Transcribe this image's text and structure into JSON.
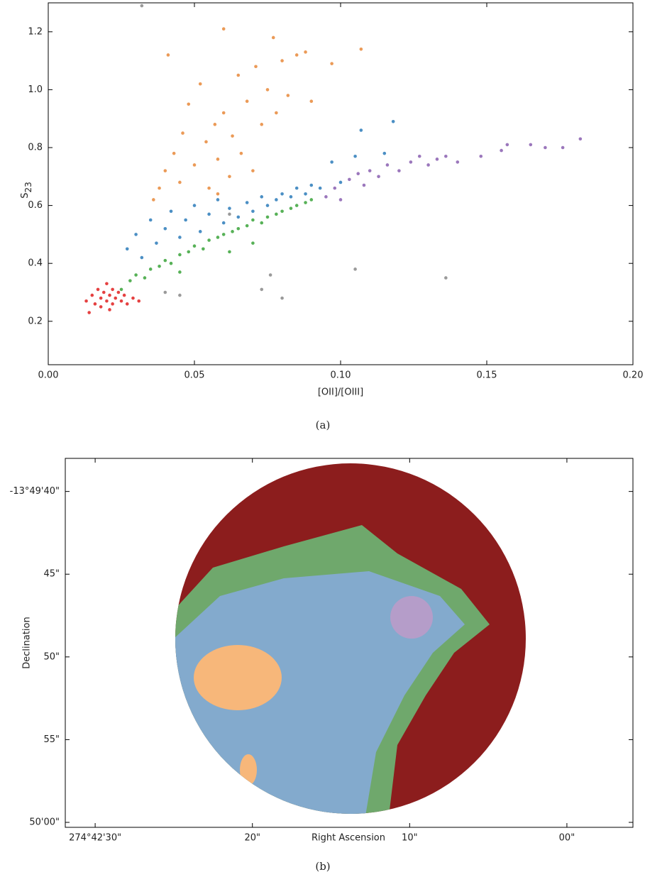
{
  "chart_data": [
    {
      "type": "scatter",
      "xlabel": "[OII]/[OIII]",
      "ylabel": [
        "S",
        "23"
      ],
      "caption": "(a)",
      "xlim": [
        0,
        0.2
      ],
      "ylim": [
        0.05,
        1.3
      ],
      "xticks": [
        {
          "value": 0,
          "label": "0.00"
        },
        0.05,
        {
          "value": 0.1,
          "label": "0.10"
        },
        0.15,
        {
          "value": 0.2,
          "label": "0.20"
        }
      ],
      "yticks": [
        0.2,
        0.4,
        0.6,
        0.8,
        {
          "value": 1,
          "label": "1.0"
        },
        1.2
      ],
      "series": [
        {
          "color": "#2b7bba",
          "x": [
            0.027,
            0.03,
            0.032,
            0.035,
            0.037,
            0.04,
            0.042,
            0.045,
            0.047,
            0.05,
            0.052,
            0.055,
            0.058,
            0.06,
            0.062,
            0.065,
            0.068,
            0.07,
            0.073,
            0.075,
            0.078,
            0.08,
            0.083,
            0.085,
            0.088,
            0.09,
            0.093,
            0.097,
            0.105,
            0.107,
            0.118,
            0.115,
            0.1
          ],
          "values": [
            0.45,
            0.5,
            0.42,
            0.55,
            0.47,
            0.52,
            0.58,
            0.49,
            0.55,
            0.6,
            0.51,
            0.57,
            0.62,
            0.54,
            0.59,
            0.56,
            0.61,
            0.58,
            0.63,
            0.6,
            0.62,
            0.64,
            0.63,
            0.66,
            0.64,
            0.67,
            0.66,
            0.75,
            0.77,
            0.86,
            0.89,
            0.78,
            0.68
          ]
        },
        {
          "color": "#3aa33a",
          "x": [
            0.025,
            0.028,
            0.03,
            0.033,
            0.035,
            0.038,
            0.04,
            0.042,
            0.045,
            0.048,
            0.05,
            0.053,
            0.055,
            0.058,
            0.06,
            0.063,
            0.065,
            0.068,
            0.07,
            0.073,
            0.075,
            0.078,
            0.08,
            0.083,
            0.085,
            0.088,
            0.09,
            0.062,
            0.07,
            0.045
          ],
          "values": [
            0.31,
            0.34,
            0.36,
            0.35,
            0.38,
            0.39,
            0.41,
            0.4,
            0.43,
            0.44,
            0.46,
            0.45,
            0.48,
            0.49,
            0.5,
            0.51,
            0.52,
            0.53,
            0.55,
            0.54,
            0.56,
            0.57,
            0.58,
            0.59,
            0.6,
            0.61,
            0.62,
            0.44,
            0.47,
            0.37
          ]
        },
        {
          "color": "#e8883a",
          "x": [
            0.036,
            0.038,
            0.04,
            0.041,
            0.043,
            0.045,
            0.046,
            0.048,
            0.05,
            0.052,
            0.054,
            0.055,
            0.057,
            0.058,
            0.06,
            0.06,
            0.062,
            0.063,
            0.065,
            0.066,
            0.068,
            0.07,
            0.071,
            0.073,
            0.075,
            0.077,
            0.078,
            0.08,
            0.082,
            0.085,
            0.088,
            0.09,
            0.097,
            0.107,
            0.058
          ],
          "values": [
            0.62,
            0.66,
            0.72,
            1.12,
            0.78,
            0.68,
            0.85,
            0.95,
            0.74,
            1.02,
            0.82,
            0.66,
            0.88,
            0.76,
            1.21,
            0.92,
            0.7,
            0.84,
            1.05,
            0.78,
            0.96,
            0.72,
            1.08,
            0.88,
            1.0,
            1.18,
            0.92,
            1.1,
            0.98,
            1.12,
            1.13,
            0.96,
            1.09,
            1.14,
            0.64
          ]
        },
        {
          "color": "#e02020",
          "x": [
            0.013,
            0.014,
            0.015,
            0.016,
            0.017,
            0.018,
            0.018,
            0.019,
            0.02,
            0.02,
            0.021,
            0.021,
            0.022,
            0.022,
            0.023,
            0.024,
            0.025,
            0.026,
            0.027,
            0.029,
            0.031
          ],
          "values": [
            0.27,
            0.23,
            0.29,
            0.26,
            0.31,
            0.25,
            0.28,
            0.3,
            0.27,
            0.33,
            0.24,
            0.29,
            0.31,
            0.26,
            0.28,
            0.3,
            0.27,
            0.29,
            0.26,
            0.28,
            0.27
          ]
        },
        {
          "color": "#8a5fb0",
          "x": [
            0.095,
            0.098,
            0.1,
            0.103,
            0.106,
            0.108,
            0.11,
            0.113,
            0.116,
            0.12,
            0.124,
            0.127,
            0.13,
            0.133,
            0.136,
            0.14,
            0.148,
            0.155,
            0.157,
            0.165,
            0.17,
            0.176,
            0.182
          ],
          "values": [
            0.63,
            0.66,
            0.62,
            0.69,
            0.71,
            0.67,
            0.72,
            0.7,
            0.74,
            0.72,
            0.75,
            0.77,
            0.74,
            0.76,
            0.77,
            0.75,
            0.77,
            0.79,
            0.81,
            0.81,
            0.8,
            0.8,
            0.83
          ]
        },
        {
          "color": "#888888",
          "x": [
            0.032,
            0.045,
            0.04,
            0.073,
            0.076,
            0.08,
            0.105,
            0.136,
            0.062
          ],
          "values": [
            1.29,
            0.29,
            0.3,
            0.31,
            0.36,
            0.28,
            0.38,
            0.35,
            0.57
          ]
        }
      ]
    },
    {
      "type": "image",
      "xlabel": "Right Ascension",
      "ylabel": "Declination",
      "caption": "(b)",
      "xlim": [
        31.9,
        -4.2
      ],
      "ylim": [
        60.3,
        38.0
      ],
      "xticks": [
        {
          "value": 30,
          "label": "274°42'30\""
        },
        {
          "value": 20,
          "label": "20\""
        },
        {
          "value": 10,
          "label": "10\""
        },
        {
          "value": 0,
          "label": "00\""
        }
      ],
      "yticks": [
        {
          "value": 40,
          "label": "-13°49'40\""
        },
        {
          "value": 45,
          "label": "45\""
        },
        {
          "value": 50,
          "label": "50\""
        },
        {
          "value": 55,
          "label": "55\""
        },
        {
          "value": 60,
          "label": "50'00\""
        }
      ]
    }
  ]
}
